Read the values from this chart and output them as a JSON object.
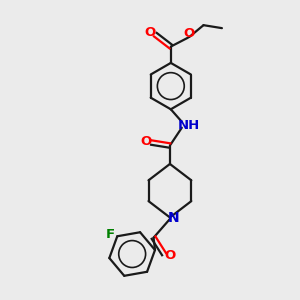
{
  "background_color": "#ebebeb",
  "bond_color": "#1a1a1a",
  "oxygen_color": "#ff0000",
  "nitrogen_color": "#0000cc",
  "fluorine_color": "#008000",
  "line_width": 1.6,
  "figsize": [
    3.0,
    3.0
  ],
  "dpi": 100,
  "xlim": [
    0,
    10
  ],
  "ylim": [
    0,
    10
  ]
}
